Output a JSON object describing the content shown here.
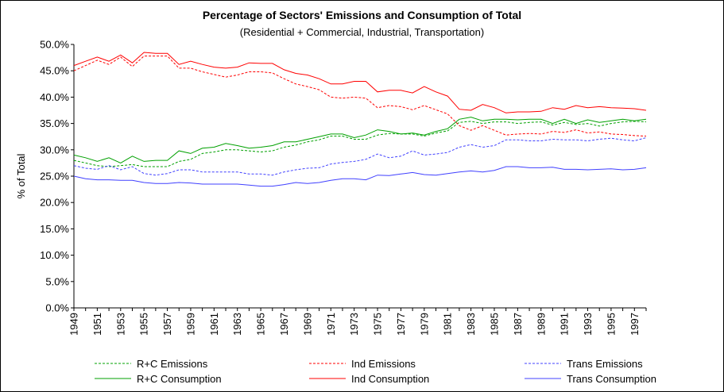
{
  "chart_data": {
    "type": "line",
    "title": "Percentage of Sectors' Emissions and Consumption of Total",
    "subtitle": "(Residential + Commercial, Industrial, Transportation)",
    "ylabel": "% of Total",
    "xlabel": "",
    "ylim": [
      0,
      50
    ],
    "yticks": [
      "0.0%",
      "5.0%",
      "10.0%",
      "15.0%",
      "20.0%",
      "25.0%",
      "30.0%",
      "35.0%",
      "40.0%",
      "45.0%",
      "50.0%"
    ],
    "x": [
      1949,
      1950,
      1951,
      1952,
      1953,
      1954,
      1955,
      1956,
      1957,
      1958,
      1959,
      1960,
      1961,
      1962,
      1963,
      1964,
      1965,
      1966,
      1967,
      1968,
      1969,
      1970,
      1971,
      1972,
      1973,
      1974,
      1975,
      1976,
      1977,
      1978,
      1979,
      1980,
      1981,
      1982,
      1983,
      1984,
      1985,
      1986,
      1987,
      1988,
      1989,
      1990,
      1991,
      1992,
      1993,
      1994,
      1995,
      1996,
      1997,
      1998
    ],
    "xticks": [
      "1949",
      "1951",
      "1953",
      "1955",
      "1957",
      "1959",
      "1961",
      "1963",
      "1965",
      "1967",
      "1969",
      "1971",
      "1973",
      "1975",
      "1977",
      "1979",
      "1981",
      "1983",
      "1985",
      "1987",
      "1989",
      "1991",
      "1993",
      "1995",
      "1997"
    ],
    "grid": false,
    "legend_position": "bottom",
    "series": [
      {
        "name": "R+C Emissions",
        "color": "#00a000",
        "dash": true,
        "values": [
          28.0,
          27.5,
          27.0,
          26.8,
          27.0,
          27.2,
          26.8,
          26.8,
          26.8,
          27.8,
          28.2,
          29.3,
          29.6,
          30.0,
          30.0,
          29.8,
          29.6,
          29.8,
          30.5,
          30.9,
          31.5,
          31.9,
          32.6,
          32.6,
          32.0,
          32.0,
          32.8,
          33.1,
          33.0,
          33.0,
          32.6,
          33.2,
          33.6,
          35.2,
          35.4,
          35.0,
          35.3,
          35.3,
          35.0,
          35.2,
          35.3,
          34.7,
          35.2,
          34.8,
          35.0,
          34.5,
          35.0,
          35.3,
          35.4,
          35.3
        ]
      },
      {
        "name": "Ind Emissions",
        "color": "#ff0000",
        "dash": true,
        "values": [
          45.0,
          46.0,
          47.0,
          46.2,
          47.6,
          45.8,
          47.8,
          47.8,
          47.8,
          45.5,
          45.5,
          44.8,
          44.3,
          43.8,
          44.2,
          44.8,
          44.8,
          44.6,
          43.5,
          42.5,
          42.0,
          41.4,
          40.0,
          39.8,
          40.0,
          39.8,
          38.0,
          38.4,
          38.2,
          37.6,
          38.4,
          37.6,
          36.8,
          34.6,
          33.7,
          34.6,
          33.7,
          32.8,
          33.0,
          33.1,
          33.0,
          33.5,
          33.3,
          33.8,
          33.2,
          33.4,
          33.0,
          32.9,
          32.7,
          32.6
        ]
      },
      {
        "name": "Trans Emissions",
        "color": "#4040ff",
        "dash": true,
        "values": [
          27.0,
          26.5,
          26.3,
          27.0,
          26.2,
          26.8,
          25.5,
          25.2,
          25.5,
          26.2,
          26.2,
          25.8,
          25.8,
          25.8,
          25.8,
          25.4,
          25.4,
          25.2,
          25.8,
          26.2,
          26.5,
          26.6,
          27.3,
          27.6,
          27.8,
          28.2,
          29.2,
          28.5,
          28.8,
          29.8,
          29.0,
          29.2,
          29.5,
          30.5,
          31.0,
          30.5,
          30.8,
          31.9,
          31.9,
          31.7,
          31.7,
          32.0,
          31.9,
          31.9,
          31.7,
          32.0,
          32.2,
          31.9,
          31.7,
          32.3
        ]
      },
      {
        "name": "R+C Consumption",
        "color": "#00a000",
        "dash": false,
        "values": [
          29.0,
          28.5,
          27.8,
          28.5,
          27.5,
          28.8,
          27.8,
          28.0,
          28.0,
          29.8,
          29.3,
          30.3,
          30.5,
          31.2,
          30.8,
          30.3,
          30.5,
          30.8,
          31.5,
          31.5,
          32.0,
          32.5,
          33.0,
          33.0,
          32.3,
          32.8,
          33.8,
          33.5,
          33.0,
          33.2,
          32.8,
          33.5,
          34.0,
          35.8,
          36.2,
          35.5,
          35.8,
          35.8,
          35.7,
          35.8,
          35.8,
          35.0,
          35.8,
          35.0,
          35.7,
          35.2,
          35.5,
          35.8,
          35.5,
          35.8
        ]
      },
      {
        "name": "Ind Consumption",
        "color": "#ff0000",
        "dash": false,
        "values": [
          46.0,
          46.8,
          47.6,
          46.8,
          48.0,
          46.5,
          48.5,
          48.3,
          48.3,
          46.2,
          46.8,
          46.2,
          45.7,
          45.5,
          45.7,
          46.5,
          46.4,
          46.4,
          45.2,
          44.5,
          44.2,
          43.5,
          42.5,
          42.5,
          43.0,
          43.0,
          41.0,
          41.3,
          41.3,
          40.8,
          42.0,
          41.0,
          40.2,
          37.7,
          37.5,
          38.6,
          38.0,
          37.0,
          37.2,
          37.2,
          37.3,
          38.0,
          37.7,
          38.4,
          38.0,
          38.2,
          38.0,
          37.9,
          37.8,
          37.5
        ]
      },
      {
        "name": "Trans Consumption",
        "color": "#4040ff",
        "dash": false,
        "values": [
          25.0,
          24.5,
          24.3,
          24.3,
          24.2,
          24.2,
          23.8,
          23.6,
          23.6,
          23.8,
          23.7,
          23.5,
          23.5,
          23.5,
          23.5,
          23.3,
          23.1,
          23.1,
          23.4,
          23.8,
          23.6,
          23.8,
          24.2,
          24.5,
          24.5,
          24.3,
          25.2,
          25.1,
          25.4,
          25.7,
          25.3,
          25.2,
          25.5,
          25.8,
          26.0,
          25.8,
          26.1,
          26.8,
          26.8,
          26.6,
          26.6,
          26.7,
          26.3,
          26.3,
          26.2,
          26.3,
          26.4,
          26.2,
          26.3,
          26.6
        ]
      }
    ]
  }
}
